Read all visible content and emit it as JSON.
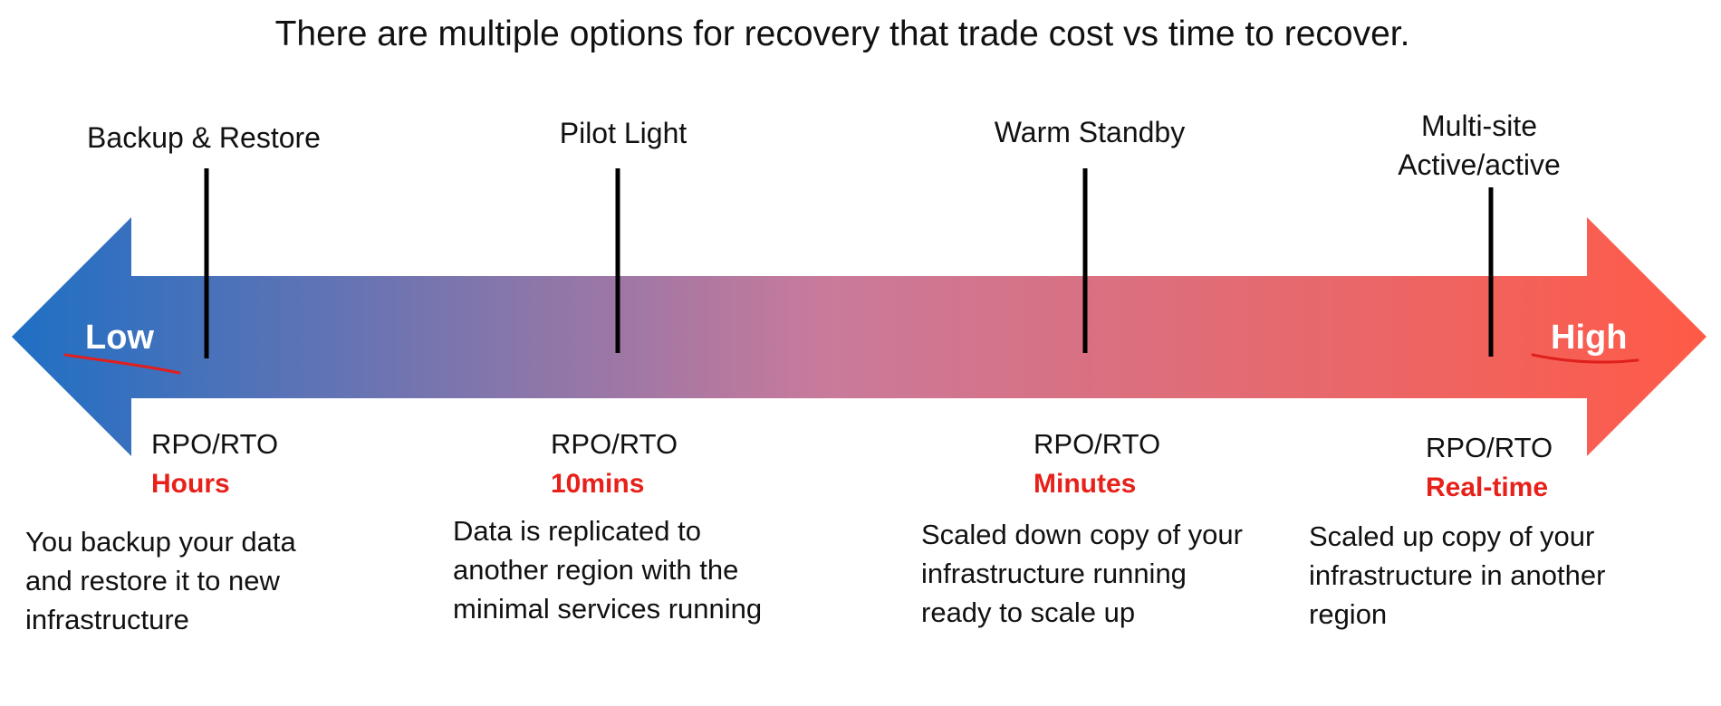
{
  "title": "There are multiple options for recovery that trade cost vs time to recover.",
  "colors": {
    "gradient_start": "#1f6fc4",
    "gradient_mid": "#c97a9b",
    "gradient_end": "#ff5a47",
    "accent_red": "#e8201a",
    "annotation_red": "#e0201c"
  },
  "scale": {
    "low_label": "Low",
    "high_label": "High"
  },
  "options": [
    {
      "name": "Backup & Restore",
      "rpo_rto_label": "RPO/RTO",
      "rpo_rto_value": "Hours",
      "description": "You backup your data\nand restore it to new\ninfrastructure"
    },
    {
      "name": "Pilot Light",
      "rpo_rto_label": "RPO/RTO",
      "rpo_rto_value": "10mins",
      "description": "Data is replicated to\nanother region with the\nminimal services running"
    },
    {
      "name": "Warm Standby",
      "rpo_rto_label": "RPO/RTO",
      "rpo_rto_value": "Minutes",
      "description": "Scaled down copy of your\ninfrastructure running\nready to scale up"
    },
    {
      "name": "Multi-site\nActive/active",
      "rpo_rto_label": "RPO/RTO",
      "rpo_rto_value": "Real-time",
      "description": "Scaled up copy of your\ninfrastructure in another\nregion"
    }
  ]
}
